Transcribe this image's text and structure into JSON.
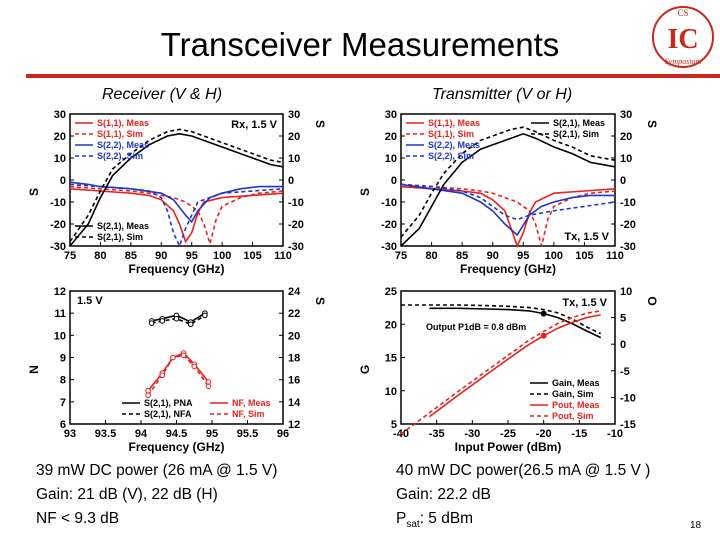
{
  "slide": {
    "title": "Transceiver Measurements",
    "receiver_heading": "Receiver (V & H)",
    "transmitter_heading": "Transmitter (V or H)",
    "page_number": "18",
    "logo_text": "CS",
    "logo_letters": "IC",
    "logo_sub": "Symposium",
    "rx_caption": [
      "39 mW DC power (26 mA @ 1.5 V)",
      "Gain: 21 dB (V), 22 dB (H)",
      "NF < 9.3 dB"
    ],
    "tx_caption": [
      "40 mW DC power(26.5 mA @ 1.5 V )",
      "Gain: 22.2 dB"
    ],
    "tx_psat_prefix": "P",
    "tx_psat_sub": "sat",
    "tx_psat_suffix": ": 5 dBm"
  },
  "chart_data": [
    {
      "id": "rx_sparams",
      "type": "line",
      "xlabel": "Frequency (GHz)",
      "xlim": [
        75,
        110
      ],
      "xticks": [
        "75",
        "80",
        "85",
        "90",
        "95",
        "100",
        "105",
        "110"
      ],
      "ylim": [
        -30,
        30
      ],
      "yticks": [
        "30",
        "20",
        "10",
        "0",
        "-10",
        "-20",
        "-30"
      ],
      "y2ticks": [
        "30",
        "20",
        "10",
        "0",
        "-10",
        "-20",
        "-30"
      ],
      "ylabel_left": "S",
      "ylabel_right": "S",
      "annotation": "Rx, 1.5 V",
      "legend_top": [
        "S(1,1), Meas",
        "S(1,1), Sim",
        "S(2,2), Meas",
        "S(2,2), Sim"
      ],
      "legend_bottom": [
        "S(2,1), Meas",
        "S(2,1), Sim"
      ],
      "series": [
        {
          "name": "S(1,1), Meas",
          "color": "#e8221e",
          "dash": "",
          "x": [
            75,
            80,
            85,
            88,
            90,
            92,
            93,
            94,
            95,
            96,
            97,
            100,
            105,
            110
          ],
          "y": [
            -4,
            -5,
            -6,
            -7,
            -9,
            -14,
            -20,
            -28,
            -24,
            -15,
            -10,
            -8,
            -7,
            -6
          ]
        },
        {
          "name": "S(1,1), Sim",
          "color": "#e8221e",
          "dash": "4,3",
          "x": [
            75,
            80,
            85,
            88,
            90,
            92,
            94,
            96,
            97,
            98,
            99,
            100,
            103,
            106,
            110
          ],
          "y": [
            -3,
            -4,
            -5,
            -6,
            -7,
            -8,
            -10,
            -14,
            -20,
            -29,
            -18,
            -12,
            -8,
            -6,
            -5
          ]
        },
        {
          "name": "S(2,2), Meas",
          "color": "#1f36c8",
          "dash": "",
          "x": [
            75,
            78,
            80,
            85,
            90,
            92,
            94,
            95,
            96,
            98,
            100,
            103,
            106,
            110
          ],
          "y": [
            -1,
            -2,
            -3,
            -4,
            -6,
            -9,
            -16,
            -19,
            -14,
            -8,
            -6,
            -4,
            -3,
            -3
          ]
        },
        {
          "name": "S(2,2), Sim",
          "color": "#1f36c8",
          "dash": "4,3",
          "x": [
            75,
            80,
            85,
            88,
            90,
            91,
            92,
            93,
            94,
            96,
            100,
            105,
            110
          ],
          "y": [
            -2,
            -3,
            -4,
            -5,
            -8,
            -14,
            -24,
            -30,
            -22,
            -10,
            -6,
            -5,
            -4
          ]
        },
        {
          "name": "S(2,1), Meas",
          "color": "#000000",
          "dash": "",
          "x": [
            75,
            78,
            80,
            82,
            85,
            88,
            91,
            93,
            95,
            98,
            100,
            103,
            105,
            108,
            110
          ],
          "y": [
            -30,
            -20,
            -8,
            2,
            10,
            16,
            20,
            21,
            20,
            17,
            15,
            12,
            10,
            7,
            6
          ]
        },
        {
          "name": "S(2,1), Sim",
          "color": "#000000",
          "dash": "4,3",
          "x": [
            75,
            78,
            80,
            82,
            85,
            88,
            91,
            93,
            95,
            98,
            100,
            103,
            105,
            108,
            110
          ],
          "y": [
            -28,
            -16,
            -5,
            5,
            12,
            18,
            22,
            23,
            22,
            19,
            17,
            14,
            12,
            9,
            8
          ]
        }
      ]
    },
    {
      "id": "rx_noise",
      "type": "line",
      "xlabel": "Frequency (GHz)",
      "xlim": [
        93,
        96
      ],
      "xticks": [
        "93",
        "93.5",
        "94",
        "94.5",
        "95",
        "95.5",
        "96"
      ],
      "ylim": [
        6,
        12
      ],
      "yticks": [
        "12",
        "11",
        "10",
        "9",
        "8",
        "7",
        "6"
      ],
      "y2ticks": [
        "24",
        "22",
        "20",
        "18",
        "16",
        "14",
        "12"
      ],
      "ylabel_left": "N",
      "ylabel_right": "S",
      "annotation": "1.5 V",
      "legend_left": [
        "S(2,1), PNA",
        "S(2,1), NFA"
      ],
      "legend_right": [
        "NF, Meas",
        "NF, Sim"
      ],
      "series": [
        {
          "name": "S(2,1), PNA",
          "color": "#000000",
          "dash": "",
          "axis": "right",
          "x": [
            94.15,
            94.3,
            94.5,
            94.7,
            94.9
          ],
          "y": [
            21.3,
            21.5,
            21.8,
            21.2,
            22.0
          ]
        },
        {
          "name": "S(2,1), NFA",
          "color": "#000000",
          "dash": "4,3",
          "axis": "right",
          "x": [
            94.15,
            94.3,
            94.5,
            94.7,
            94.9
          ],
          "y": [
            21.1,
            21.3,
            21.5,
            21.0,
            21.8
          ]
        },
        {
          "name": "NF, Meas",
          "color": "#e8221e",
          "dash": "",
          "x": [
            94.1,
            94.3,
            94.45,
            94.6,
            94.75,
            94.95
          ],
          "y": [
            7.5,
            8.3,
            9.0,
            9.2,
            8.7,
            7.9
          ]
        },
        {
          "name": "NF, Sim",
          "color": "#e8221e",
          "dash": "4,3",
          "x": [
            94.1,
            94.3,
            94.45,
            94.6,
            94.75,
            94.95
          ],
          "y": [
            7.3,
            8.2,
            9.0,
            9.1,
            8.6,
            7.7
          ]
        }
      ]
    },
    {
      "id": "tx_sparams",
      "type": "line",
      "xlabel": "Frequency (GHz)",
      "xlim": [
        75,
        110
      ],
      "xticks": [
        "75",
        "80",
        "85",
        "90",
        "95",
        "100",
        "105",
        "110"
      ],
      "ylim": [
        -30,
        30
      ],
      "yticks": [
        "30",
        "20",
        "10",
        "0",
        "-10",
        "-20",
        "-30"
      ],
      "y2ticks": [
        "30",
        "20",
        "10",
        "0",
        "-10",
        "-20",
        "-30"
      ],
      "ylabel_left": "S",
      "ylabel_right": "S",
      "annotation": "Tx, 1.5 V",
      "legend_top_left": [
        "S(1,1), Meas",
        "S(1,1), Sim",
        "S(2,2), Meas",
        "S(2,2), Sim"
      ],
      "legend_top_right": [
        "S(2,1), Meas",
        "S(2,1), Sim"
      ],
      "series": [
        {
          "name": "S(1,1), Meas",
          "color": "#e8221e",
          "dash": "",
          "x": [
            75,
            80,
            85,
            88,
            90,
            92,
            93,
            94,
            95,
            96,
            97,
            100,
            105,
            110
          ],
          "y": [
            -3,
            -4,
            -5,
            -6,
            -9,
            -14,
            -22,
            -30,
            -24,
            -15,
            -10,
            -6,
            -5,
            -4
          ]
        },
        {
          "name": "S(1,1), Sim",
          "color": "#e8221e",
          "dash": "4,3",
          "x": [
            75,
            80,
            85,
            88,
            90,
            92,
            94,
            96,
            97,
            98,
            99,
            100,
            103,
            106,
            110
          ],
          "y": [
            -2,
            -3,
            -4,
            -5,
            -6,
            -8,
            -10,
            -14,
            -20,
            -30,
            -18,
            -12,
            -8,
            -6,
            -5
          ]
        },
        {
          "name": "S(2,2), Meas",
          "color": "#1f36c8",
          "dash": "",
          "x": [
            75,
            80,
            85,
            88,
            90,
            92,
            94,
            96,
            98,
            100,
            103,
            106,
            110
          ],
          "y": [
            -2,
            -4,
            -6,
            -10,
            -14,
            -20,
            -25,
            -16,
            -12,
            -10,
            -8,
            -7,
            -7
          ]
        },
        {
          "name": "S(2,2), Sim",
          "color": "#1f36c8",
          "dash": "4,3",
          "x": [
            75,
            80,
            85,
            88,
            90,
            92,
            94,
            96,
            100,
            105,
            110
          ],
          "y": [
            -2,
            -3,
            -5,
            -8,
            -12,
            -16,
            -18,
            -16,
            -14,
            -12,
            -10
          ]
        },
        {
          "name": "S(2,1), Meas",
          "color": "#000000",
          "dash": "",
          "x": [
            75,
            78,
            80,
            82,
            85,
            88,
            91,
            93,
            95,
            97,
            100,
            103,
            106,
            110
          ],
          "y": [
            -30,
            -22,
            -12,
            -2,
            8,
            14,
            17,
            19,
            21,
            19,
            15,
            12,
            8,
            6
          ]
        },
        {
          "name": "S(2,1), Sim",
          "color": "#000000",
          "dash": "4,3",
          "x": [
            75,
            78,
            80,
            82,
            85,
            88,
            91,
            93,
            95,
            97,
            100,
            103,
            106,
            110
          ],
          "y": [
            -26,
            -16,
            -6,
            3,
            12,
            18,
            21,
            23,
            24,
            22,
            18,
            15,
            11,
            9
          ]
        }
      ]
    },
    {
      "id": "tx_power",
      "type": "line",
      "xlabel": "Input Power (dBm)",
      "xlim": [
        -40,
        -10
      ],
      "xticks": [
        "-40",
        "-35",
        "-30",
        "-25",
        "-20",
        "-15",
        "-10"
      ],
      "ylim": [
        5,
        25
      ],
      "yticks": [
        "25",
        "20",
        "15",
        "10",
        "5"
      ],
      "y2ticks": [
        "10",
        "5",
        "0",
        "-5",
        "-10",
        "-15"
      ],
      "y2lim": [
        -15,
        10
      ],
      "ylabel_left": "G",
      "ylabel_right": "O",
      "annotation": "Tx, 1.5 V",
      "p1db_label": "Output P1dB = 0.8 dBm",
      "legend": [
        "Gain, Meas",
        "Gain, Sim",
        "Pout, Meas",
        "Pout, Sim"
      ],
      "series": [
        {
          "name": "Gain, Meas",
          "color": "#000000",
          "dash": "",
          "x": [
            -36,
            -32,
            -28,
            -25,
            -22,
            -20,
            -18,
            -16,
            -14,
            -12
          ],
          "y": [
            22.4,
            22.4,
            22.3,
            22.2,
            22.0,
            21.6,
            21.0,
            20.1,
            19.0,
            18.0
          ]
        },
        {
          "name": "Gain, Sim",
          "color": "#000000",
          "dash": "4,3",
          "x": [
            -40,
            -36,
            -32,
            -28,
            -25,
            -22,
            -20,
            -18,
            -16,
            -14,
            -12
          ],
          "y": [
            22.9,
            22.9,
            22.9,
            22.8,
            22.7,
            22.5,
            22.2,
            21.7,
            20.8,
            19.6,
            18.6
          ]
        },
        {
          "name": "Pout, Meas",
          "color": "#e8221e",
          "dash": "",
          "axis": "right",
          "x": [
            -36,
            -32,
            -28,
            -25,
            -22,
            -20,
            -18,
            -16,
            -14,
            -12
          ],
          "y": [
            -13.6,
            -9.6,
            -5.7,
            -2.8,
            0,
            1.6,
            3.0,
            4.1,
            5.0,
            5.5
          ]
        },
        {
          "name": "Pout, Sim",
          "color": "#e8221e",
          "dash": "4,3",
          "axis": "right",
          "x": [
            -40,
            -36,
            -32,
            -28,
            -25,
            -22,
            -20,
            -18,
            -16,
            -14,
            -12
          ],
          "y": [
            -16.9,
            -12.9,
            -8.9,
            -5.0,
            -2.1,
            0.8,
            2.4,
            3.9,
            5.0,
            5.8,
            6.3
          ]
        }
      ]
    }
  ]
}
